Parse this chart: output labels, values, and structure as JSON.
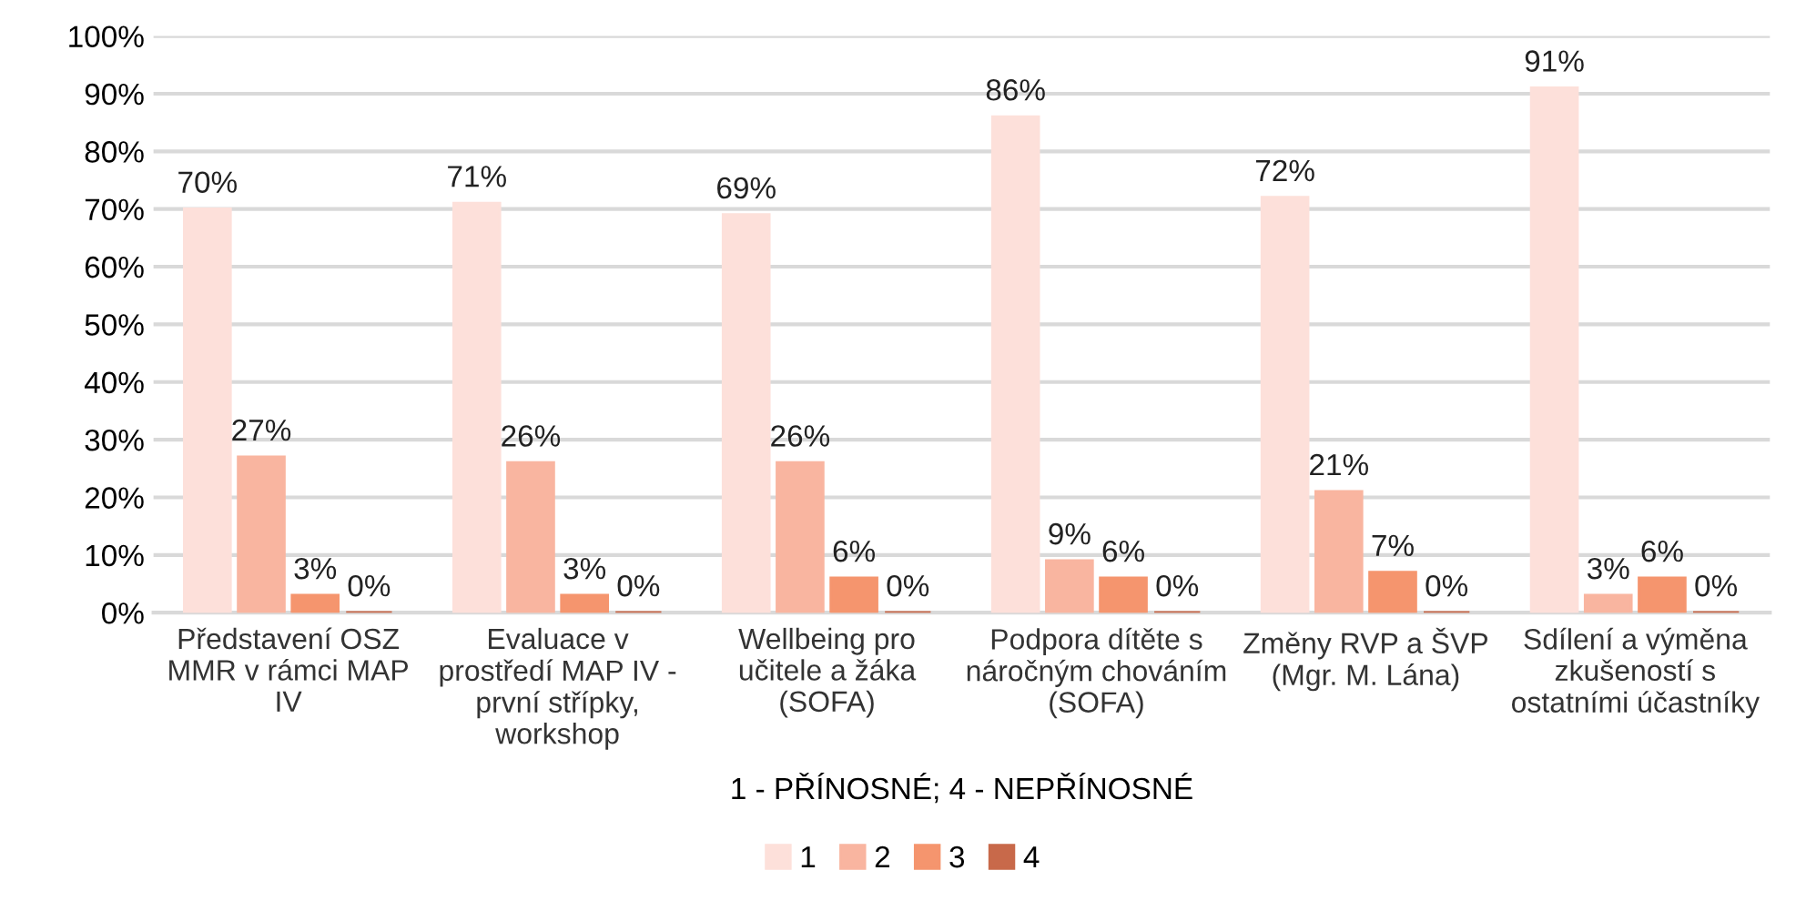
{
  "chart_data": {
    "type": "bar",
    "categories": [
      "Představení OSZ MMR v rámci MAP IV",
      "Evaluace v prostředí MAP IV - první střípky, workshop",
      "Wellbeing pro učitele a žáka (SOFA)",
      "Podpora dítěte s náročným chováním (SOFA)",
      "Změny RVP a ŠVP (Mgr. M. Lána)",
      "Sdílení a výměna zkušeností s ostatními účastníky"
    ],
    "series": [
      {
        "name": "1",
        "color": "#fde0da",
        "values": [
          70,
          71,
          69,
          86,
          72,
          91
        ],
        "value_labels": [
          "70%",
          "71%",
          "69%",
          "86%",
          "72%",
          "91%"
        ]
      },
      {
        "name": "2",
        "color": "#f9b5a0",
        "values": [
          27,
          26,
          26,
          9,
          21,
          3
        ],
        "value_labels": [
          "27%",
          "26%",
          "26%",
          "9%",
          "21%",
          "3%"
        ]
      },
      {
        "name": "3",
        "color": "#f5956e",
        "values": [
          3,
          3,
          6,
          6,
          7,
          6
        ],
        "value_labels": [
          "3%",
          "3%",
          "6%",
          "6%",
          "7%",
          "6%"
        ]
      },
      {
        "name": "4",
        "color": "#c8694a",
        "values": [
          0,
          0,
          0,
          0,
          0,
          0
        ],
        "value_labels": [
          "0%",
          "0%",
          "0%",
          "0%",
          "0%",
          "0%"
        ]
      }
    ],
    "xlabel": "1 - PŘÍNOSNÉ; 4 - NEPŘÍNOSNÉ",
    "ylim": [
      0,
      100
    ],
    "yticks": [
      {
        "value": 0,
        "label": "0%"
      },
      {
        "value": 10,
        "label": "10%"
      },
      {
        "value": 20,
        "label": "20%"
      },
      {
        "value": 30,
        "label": "30%"
      },
      {
        "value": 40,
        "label": "40%"
      },
      {
        "value": 50,
        "label": "50%"
      },
      {
        "value": 60,
        "label": "60%"
      },
      {
        "value": 70,
        "label": "70%"
      },
      {
        "value": 80,
        "label": "80%"
      },
      {
        "value": 90,
        "label": "90%"
      },
      {
        "value": 100,
        "label": "100%"
      }
    ],
    "grid": "y",
    "legend": "bottom"
  }
}
